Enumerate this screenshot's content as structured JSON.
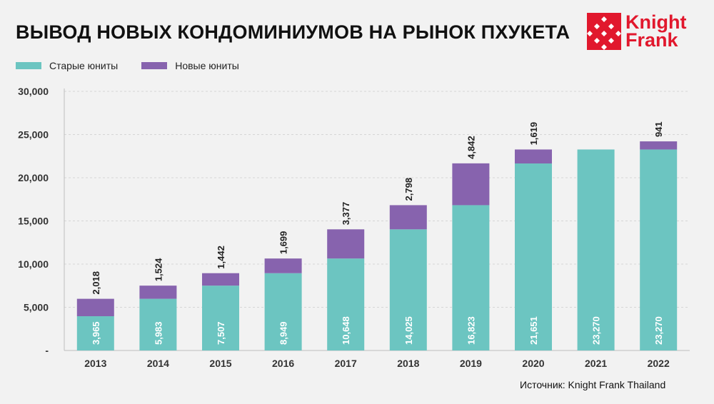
{
  "title": "ВЫВОД НОВЫХ КОНДОМИНИУМОВ НА РЫНОК ПХУКЕТА",
  "logo": {
    "line1": "Knight",
    "line2": "Frank"
  },
  "source": "Источник: Knight Frank Thailand",
  "colors": {
    "old": "#6cc5c1",
    "new": "#8763ae",
    "brand": "#e1182d",
    "grid": "#d6d6d6"
  },
  "chart_data": {
    "type": "bar",
    "stacked": true,
    "title": "ВЫВОД НОВЫХ КОНДОМИНИУМОВ НА РЫНОК ПХУКЕТА",
    "categories": [
      "2013",
      "2014",
      "2015",
      "2016",
      "2017",
      "2018",
      "2019",
      "2020",
      "2021",
      "2022"
    ],
    "series": [
      {
        "name": "Старые юниты",
        "values": [
          3965,
          5983,
          7507,
          8949,
          10648,
          14025,
          16823,
          21651,
          23270,
          23270
        ],
        "labels": [
          "3,965",
          "5,983",
          "7,507",
          "8,949",
          "10,648",
          "14,025",
          "16,823",
          "21,651",
          "23,270",
          "23,270"
        ]
      },
      {
        "name": "Новые юниты",
        "values": [
          2018,
          1524,
          1442,
          1699,
          3377,
          2798,
          4842,
          1619,
          0,
          941
        ],
        "labels": [
          "2,018",
          "1,524",
          "1,442",
          "1,699",
          "3,377",
          "2,798",
          "4,842",
          "1,619",
          "",
          "941"
        ]
      }
    ],
    "y_ticks": [
      {
        "value": 0,
        "label": "-"
      },
      {
        "value": 5000,
        "label": "5,000"
      },
      {
        "value": 10000,
        "label": "10,000"
      },
      {
        "value": 15000,
        "label": "15,000"
      },
      {
        "value": 20000,
        "label": "20,000"
      },
      {
        "value": 25000,
        "label": "25,000"
      },
      {
        "value": 30000,
        "label": "30,000"
      }
    ],
    "ylim": [
      0,
      30000
    ],
    "grid": true,
    "legend_position": "top-left"
  }
}
